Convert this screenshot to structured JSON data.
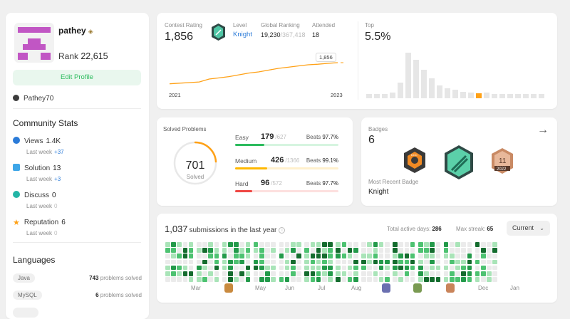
{
  "profile": {
    "username": "pathey",
    "rank_label": "Rank",
    "rank_value": "22,615",
    "edit_label": "Edit Profile",
    "github": "Pathey70"
  },
  "community": {
    "title": "Community Stats",
    "stats": [
      {
        "label": "Views",
        "value": "1.4K",
        "sub_label": "Last week",
        "delta": "+37",
        "icon": "eye-icon",
        "color": "#2b7bd8"
      },
      {
        "label": "Solution",
        "value": "13",
        "sub_label": "Last week",
        "delta": "+3",
        "icon": "solution-icon",
        "color": "#3ea6e8"
      },
      {
        "label": "Discuss",
        "value": "0",
        "sub_label": "Last week",
        "delta": "0",
        "icon": "discuss-icon",
        "color": "#23b5a6"
      },
      {
        "label": "Reputation",
        "value": "6",
        "sub_label": "Last week",
        "delta": "0",
        "icon": "star-icon",
        "color": "#ffa116"
      }
    ]
  },
  "languages": {
    "title": "Languages",
    "items": [
      {
        "name": "Java",
        "count": "743",
        "suffix": "problems solved"
      },
      {
        "name": "MySQL",
        "count": "6",
        "suffix": "problems solved"
      }
    ]
  },
  "contest": {
    "rating_label": "Contest Rating",
    "rating": "1,856",
    "level_label": "Level",
    "level": "Knight",
    "global_label": "Global Ranking",
    "global_rank": "19,230",
    "global_total": "/367,418",
    "attended_label": "Attended",
    "attended": "18",
    "top_label": "Top",
    "top_value": "5.5%",
    "tooltip": "1,856",
    "x_start": "2021",
    "x_end": "2023",
    "line_color": "#ffa116"
  },
  "solved": {
    "title": "Solved Problems",
    "total": "701",
    "total_label": "Solved",
    "difficulties": [
      {
        "name": "Easy",
        "solved": "179",
        "total": "/627",
        "beats_label": "Beats",
        "beats": "97.7%",
        "fraction": 0.285,
        "color": "#2cbb5d",
        "track": "#d6f5e0"
      },
      {
        "name": "Medium",
        "solved": "426",
        "total": "/1366",
        "beats_label": "Beats",
        "beats": "99.1%",
        "fraction": 0.312,
        "color": "#ffb800",
        "track": "#fff0cc"
      },
      {
        "name": "Hard",
        "solved": "96",
        "total": "/572",
        "beats_label": "Beats",
        "beats": "97.7%",
        "fraction": 0.168,
        "color": "#ef4743",
        "track": "#fde0df"
      }
    ]
  },
  "badges": {
    "title": "Badges",
    "count": "6",
    "recent_label": "Most Recent Badge",
    "recent": "Knight",
    "items": [
      {
        "name": "dcc-badge",
        "text": "DCC"
      },
      {
        "name": "knight-badge",
        "text": ""
      },
      {
        "name": "annual-badge",
        "text": "11",
        "year": "2022"
      }
    ]
  },
  "submissions": {
    "count": "1,037",
    "rest": "submissions in the last year",
    "active_label": "Total active days:",
    "active_days": "286",
    "streak_label": "Max streak:",
    "max_streak": "65",
    "select_value": "Current",
    "months": [
      "Mar",
      "May",
      "Jun",
      "Jul",
      "Aug",
      "Dec",
      "Jan"
    ]
  },
  "chart_data": {
    "type": "line",
    "title": "Contest Rating",
    "x": [
      "2021",
      "",
      "",
      "",
      "",
      "",
      "",
      "",
      "",
      "",
      "",
      "",
      "",
      "",
      "",
      "",
      "",
      "2023"
    ],
    "series": [
      {
        "values": [
          1500,
          1510,
          1520,
          1530,
          1580,
          1600,
          1620,
          1650,
          1680,
          1700,
          1730,
          1760,
          1780,
          1800,
          1820,
          1830,
          1845,
          1856
        ]
      }
    ],
    "ylim": [
      1400,
      2000
    ]
  }
}
